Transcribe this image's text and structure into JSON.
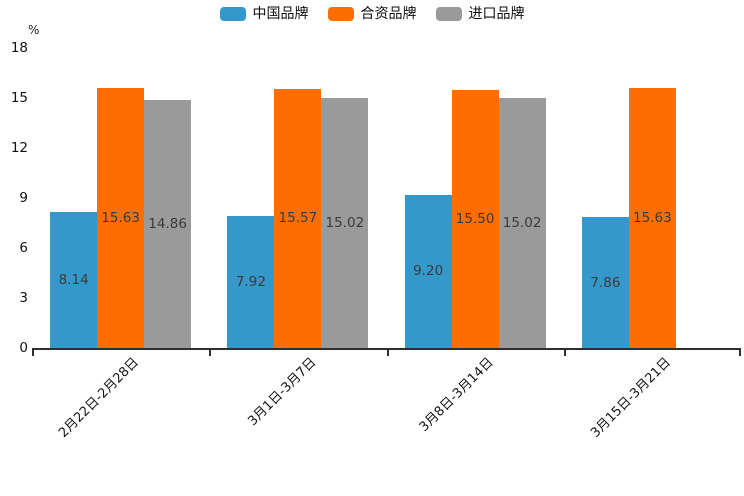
{
  "chart": {
    "unit_label": "%",
    "accent_colors": {
      "china_brand": "#3498cb",
      "joint_venture_brand": "#fc6e02",
      "import_brand": "#9a9a9a"
    },
    "axis_color": "#2e2e2e"
  },
  "chart_data": {
    "type": "bar",
    "title": "",
    "ylabel": "%",
    "xlabel": "",
    "categories": [
      "2月22日-2月28日",
      "3月1日-3月7日",
      "3月8日-3月14日",
      "3月15日-3月21日"
    ],
    "series": [
      {
        "name": "中国品牌",
        "color": "#3498cb",
        "values": [
          8.14,
          7.92,
          9.2,
          7.86
        ]
      },
      {
        "name": "合资品牌",
        "color": "#fc6e02",
        "values": [
          15.63,
          15.57,
          15.5,
          15.63
        ]
      },
      {
        "name": "进口品牌",
        "color": "#9a9a9a",
        "values": [
          14.86,
          15.02,
          15.02,
          null
        ]
      }
    ],
    "yticks": [
      0,
      3,
      6,
      9,
      12,
      15,
      18
    ],
    "ylim": [
      0,
      18
    ],
    "grid": false,
    "legend_position": "top-center",
    "value_label_format": "2-decimals-centered-in-bar",
    "x_label_rotation_deg": 45
  }
}
